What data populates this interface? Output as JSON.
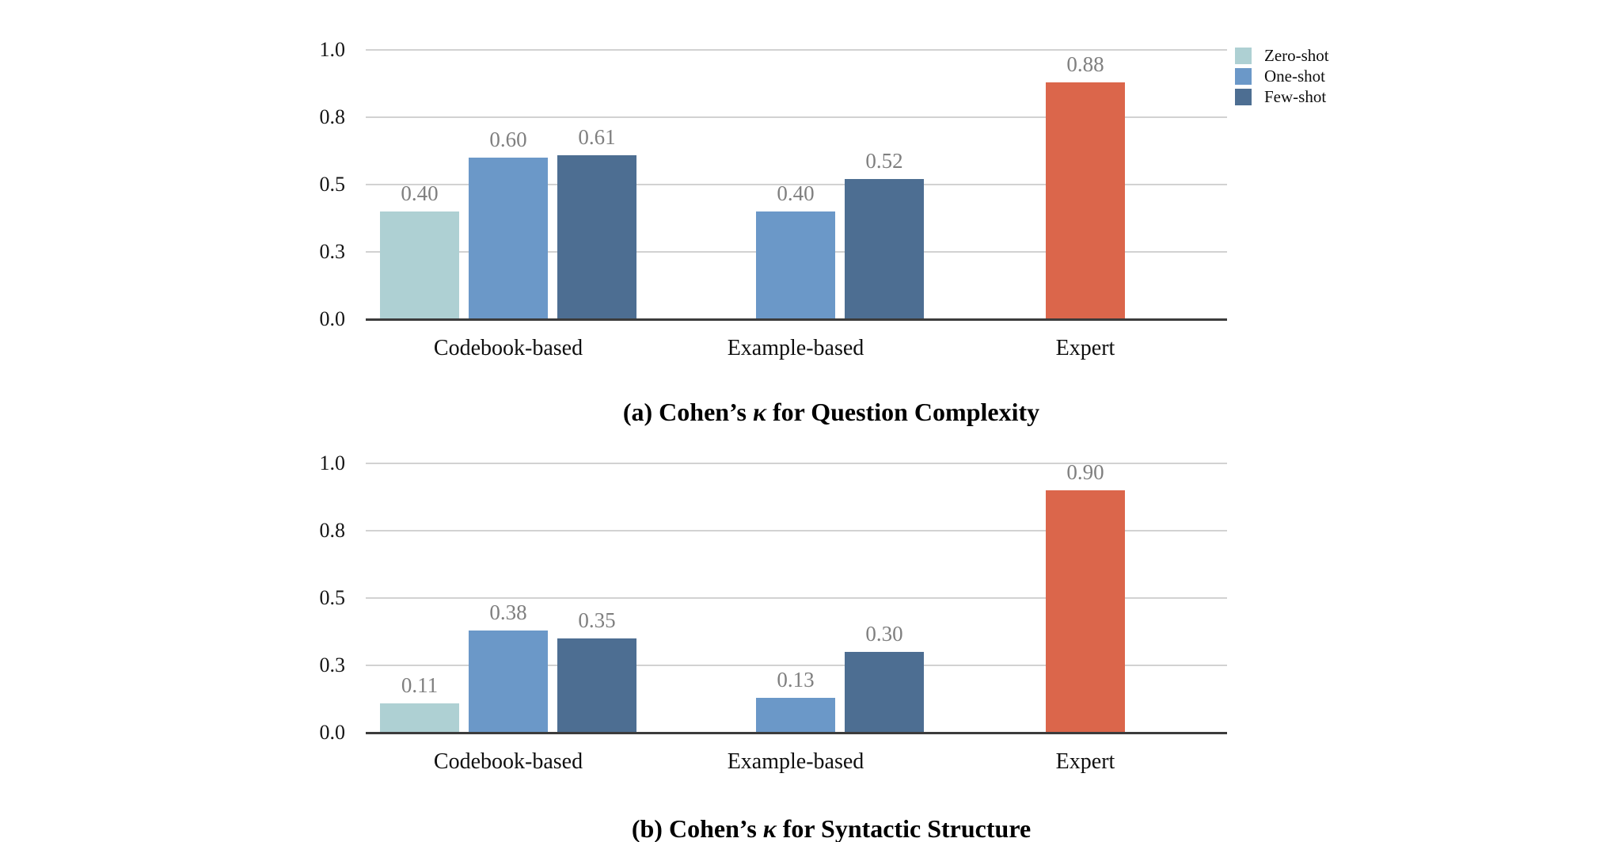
{
  "figure": {
    "background": "#ffffff",
    "grid_color": "#d2d2d2",
    "axis_color": "#3c3c3c",
    "value_label_color": "#7f7f7f",
    "text_color": "#0f0f0f"
  },
  "legend": {
    "position": "top-right",
    "items": [
      "Zero-shot",
      "One-shot",
      "Few-shot"
    ]
  },
  "chart_data": [
    {
      "type": "bar",
      "title": "(a) Cohen’s κ for Question Complexity",
      "xlabel": "",
      "ylabel": "",
      "ylim": [
        0,
        1
      ],
      "grid": true,
      "legend_position": "top-right-outside",
      "yticks": [
        {
          "pos": 0.0,
          "label": "0.0"
        },
        {
          "pos": 0.25,
          "label": "0.3"
        },
        {
          "pos": 0.5,
          "label": "0.5"
        },
        {
          "pos": 0.75,
          "label": "0.8"
        },
        {
          "pos": 1.0,
          "label": "1.0"
        }
      ],
      "categories": [
        "Codebook-based",
        "Example-based",
        "Expert"
      ],
      "series": [
        {
          "name": "Zero-shot",
          "color": "#AED0D3",
          "values": [
            0.4,
            null,
            null
          ]
        },
        {
          "name": "One-shot",
          "color": "#6B98C8",
          "values": [
            0.6,
            0.4,
            null
          ]
        },
        {
          "name": "Few-shot",
          "color": "#4D6E92",
          "values": [
            0.61,
            0.52,
            null
          ]
        },
        {
          "name": "Expert",
          "color": "#DB664B",
          "values": [
            null,
            null,
            0.88
          ]
        }
      ]
    },
    {
      "type": "bar",
      "title": "(b) Cohen’s κ for Syntactic Structure",
      "xlabel": "",
      "ylabel": "",
      "ylim": [
        0,
        1
      ],
      "grid": true,
      "legend_position": "none",
      "yticks": [
        {
          "pos": 0.0,
          "label": "0.0"
        },
        {
          "pos": 0.25,
          "label": "0.3"
        },
        {
          "pos": 0.5,
          "label": "0.5"
        },
        {
          "pos": 0.75,
          "label": "0.8"
        },
        {
          "pos": 1.0,
          "label": "1.0"
        }
      ],
      "categories": [
        "Codebook-based",
        "Example-based",
        "Expert"
      ],
      "series": [
        {
          "name": "Zero-shot",
          "color": "#AED0D3",
          "values": [
            0.11,
            null,
            null
          ]
        },
        {
          "name": "One-shot",
          "color": "#6B98C8",
          "values": [
            0.38,
            0.13,
            null
          ]
        },
        {
          "name": "Few-shot",
          "color": "#4D6E92",
          "values": [
            0.35,
            0.3,
            null
          ]
        },
        {
          "name": "Expert",
          "color": "#DB664B",
          "values": [
            null,
            null,
            0.9
          ]
        }
      ]
    }
  ]
}
